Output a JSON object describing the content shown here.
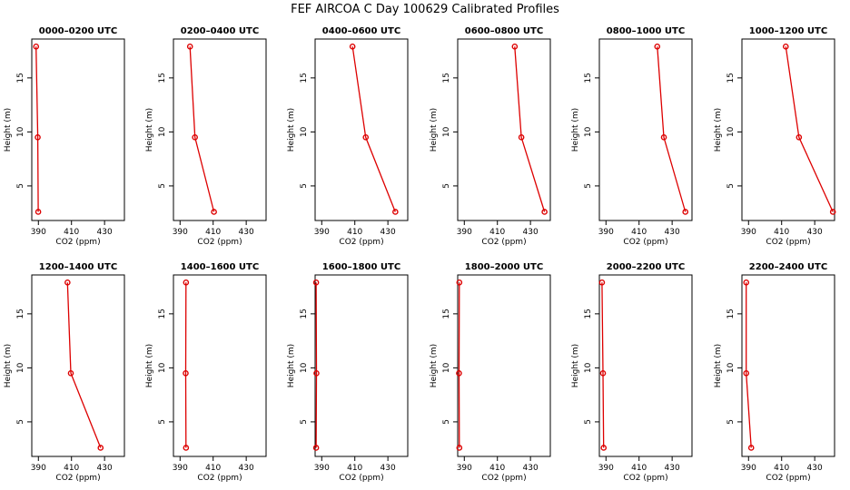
{
  "title": "FEF AIRCOA C  Day 100629  Calibrated Profiles",
  "chart_data": {
    "type": "line",
    "xlabel": "CO2 (ppm)",
    "ylabel": "Height (m)",
    "xlim": [
      386,
      442
    ],
    "ylim": [
      1.8,
      18.6
    ],
    "xticks": [
      390,
      410,
      430
    ],
    "yticks": [
      5,
      10,
      15
    ],
    "panels": [
      {
        "title": "0000–0200 UTC",
        "x": [
          388.6,
          389.6,
          389.9
        ],
        "y": [
          17.9,
          9.5,
          2.6
        ]
      },
      {
        "title": "0200–0400 UTC",
        "x": [
          396.0,
          399.0,
          410.5
        ],
        "y": [
          17.9,
          9.5,
          2.6
        ]
      },
      {
        "title": "0400–0600 UTC",
        "x": [
          408.6,
          416.6,
          434.5
        ],
        "y": [
          17.9,
          9.5,
          2.6
        ]
      },
      {
        "title": "0600–0800 UTC",
        "x": [
          420.5,
          424.5,
          438.5
        ],
        "y": [
          17.9,
          9.5,
          2.6
        ]
      },
      {
        "title": "0800–1000 UTC",
        "x": [
          421.0,
          425.0,
          438.0
        ],
        "y": [
          17.9,
          9.5,
          2.6
        ]
      },
      {
        "title": "1000–1200 UTC",
        "x": [
          412.5,
          420.5,
          441.0
        ],
        "y": [
          17.9,
          9.5,
          2.6
        ]
      },
      {
        "title": "1200–1400 UTC",
        "x": [
          407.6,
          409.6,
          427.6
        ],
        "y": [
          17.9,
          9.5,
          2.6
        ]
      },
      {
        "title": "1400–1600 UTC",
        "x": [
          393.6,
          393.4,
          393.6
        ],
        "y": [
          17.9,
          9.5,
          2.6
        ]
      },
      {
        "title": "1600–1800 UTC",
        "x": [
          386.6,
          386.8,
          386.6
        ],
        "y": [
          17.9,
          9.5,
          2.6
        ]
      },
      {
        "title": "1800–2000 UTC",
        "x": [
          387.0,
          386.8,
          387.0
        ],
        "y": [
          17.9,
          9.5,
          2.6
        ]
      },
      {
        "title": "2000–2200 UTC",
        "x": [
          387.6,
          388.2,
          388.6
        ],
        "y": [
          17.9,
          9.5,
          2.6
        ]
      },
      {
        "title": "2200–2400 UTC",
        "x": [
          388.6,
          388.6,
          391.6
        ],
        "y": [
          17.9,
          9.5,
          2.6
        ]
      }
    ]
  }
}
